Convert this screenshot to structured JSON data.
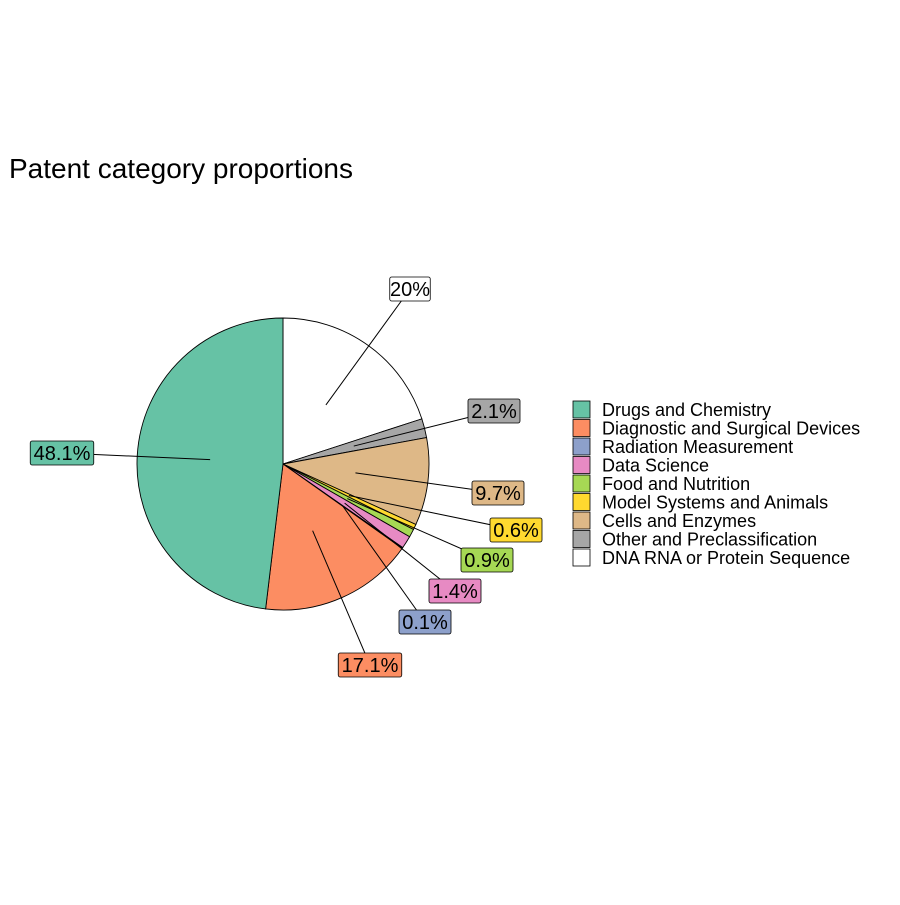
{
  "chart_data": {
    "type": "pie",
    "title": "Patent category proportions",
    "start": "12 o'clock",
    "direction": "clockwise",
    "slices": [
      {
        "label": "DNA RNA or Protein Sequence",
        "value": 20.0,
        "display": "20%",
        "color": "#FFFFFF"
      },
      {
        "label": "Other and Preclassification",
        "value": 2.1,
        "display": "2.1%",
        "color": "#A6A6A6"
      },
      {
        "label": "Cells and Enzymes",
        "value": 9.7,
        "display": "9.7%",
        "color": "#DEB887"
      },
      {
        "label": "Model Systems and Animals",
        "value": 0.6,
        "display": "0.6%",
        "color": "#FFD92F"
      },
      {
        "label": "Food and Nutrition",
        "value": 0.9,
        "display": "0.9%",
        "color": "#A6D854"
      },
      {
        "label": "Data Science",
        "value": 1.4,
        "display": "1.4%",
        "color": "#E78AC3"
      },
      {
        "label": "Radiation Measurement",
        "value": 0.1,
        "display": "0.1%",
        "color": "#8DA0CB"
      },
      {
        "label": "Diagnostic and Surgical Devices",
        "value": 17.1,
        "display": "17.1%",
        "color": "#FC8D62"
      },
      {
        "label": "Drugs and Chemistry",
        "value": 48.1,
        "display": "48.1%",
        "color": "#66C2A5"
      }
    ],
    "legend": {
      "position": "right",
      "entries": [
        "Drugs and Chemistry",
        "Diagnostic and Surgical Devices",
        "Radiation Measurement",
        "Data Science",
        "Food and Nutrition",
        "Model Systems and Animals",
        "Cells and Enzymes",
        "Other and Preclassification",
        "DNA RNA or Protein Sequence"
      ]
    }
  }
}
